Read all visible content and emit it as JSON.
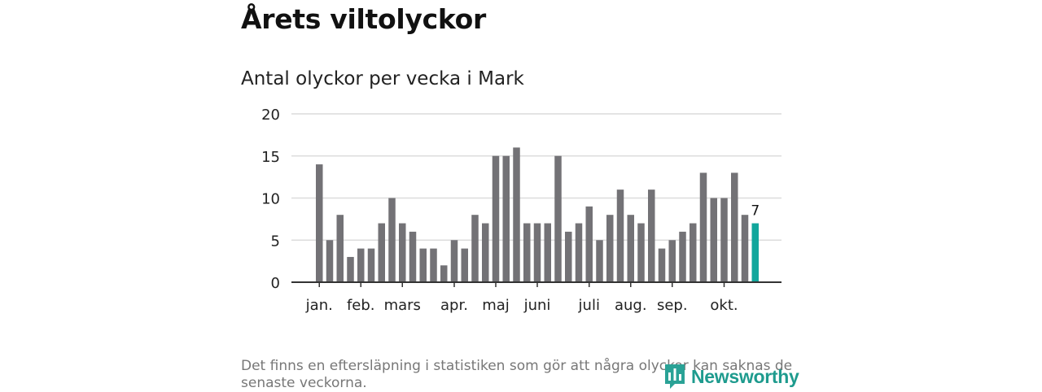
{
  "title": "Årets viltolyckor",
  "subtitle": "Antal olyckor per vecka i Mark",
  "footnote": "Det finns en eftersläpning i statistiken som gör att några olyckor kan saknas de senaste veckorna.",
  "logo_text": "Newsworthy",
  "colors": {
    "bar": "#737276",
    "highlight": "#11a69c",
    "grid": "#dcdcdc",
    "axis": "#333333",
    "logo": "#1e9b8e"
  },
  "chart_data": {
    "type": "bar",
    "title": "Antal olyckor per vecka i Mark",
    "xlabel": "",
    "ylabel": "",
    "ylim": [
      0,
      20
    ],
    "yticks": [
      0,
      5,
      10,
      15,
      20
    ],
    "grid": true,
    "values": [
      14,
      5,
      8,
      3,
      4,
      4,
      7,
      10,
      7,
      6,
      4,
      4,
      2,
      5,
      4,
      8,
      7,
      15,
      15,
      16,
      7,
      7,
      7,
      15,
      6,
      7,
      9,
      5,
      8,
      11,
      8,
      7,
      11,
      4,
      5,
      6,
      7,
      13,
      10,
      10,
      13,
      8,
      7
    ],
    "highlight_index": 42,
    "last_value_label": "7",
    "month_labels": [
      {
        "label": "jan.",
        "bar_index": 0
      },
      {
        "label": "feb.",
        "bar_index": 4
      },
      {
        "label": "mars",
        "bar_index": 8
      },
      {
        "label": "apr.",
        "bar_index": 13
      },
      {
        "label": "maj",
        "bar_index": 17
      },
      {
        "label": "juni",
        "bar_index": 21
      },
      {
        "label": "juli",
        "bar_index": 26
      },
      {
        "label": "aug.",
        "bar_index": 30
      },
      {
        "label": "sep.",
        "bar_index": 34
      },
      {
        "label": "okt.",
        "bar_index": 39
      }
    ]
  }
}
